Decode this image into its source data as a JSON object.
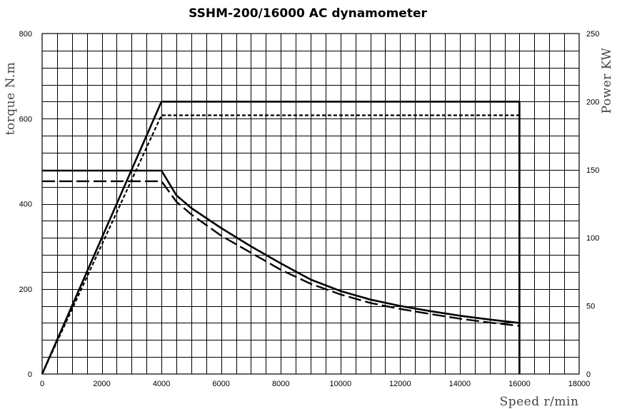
{
  "chart_data": {
    "type": "line",
    "title": "SSHM-200/16000 AC dynamometer",
    "xlabel": "Speed r/min",
    "ylabel_left": "torque N.m",
    "ylabel_right": "Power KW",
    "xlim": [
      0,
      18000
    ],
    "ylim_left": [
      0,
      800
    ],
    "ylim_right": [
      0,
      250
    ],
    "x_ticks": [
      "0",
      "2000",
      "4000",
      "6000",
      "8000",
      "10000",
      "12000",
      "14000",
      "16000",
      "18000"
    ],
    "y_left_ticks": [
      "0",
      "200",
      "400",
      "600",
      "800"
    ],
    "y_right_ticks": [
      "0",
      "50",
      "100",
      "150",
      "200",
      "250"
    ],
    "grid": true,
    "series": [
      {
        "style": "solid",
        "axis": "left",
        "points": [
          [
            0,
            478
          ],
          [
            4000,
            478
          ],
          [
            4500,
            420
          ],
          [
            5000,
            390
          ],
          [
            6000,
            343
          ],
          [
            7000,
            300
          ],
          [
            8000,
            260
          ],
          [
            9000,
            222
          ],
          [
            10000,
            195
          ],
          [
            11000,
            175
          ],
          [
            12000,
            160
          ],
          [
            13000,
            148
          ],
          [
            14000,
            137
          ],
          [
            15000,
            128
          ],
          [
            16000,
            120
          ]
        ]
      },
      {
        "style": "dashed",
        "axis": "left",
        "points": [
          [
            0,
            453
          ],
          [
            4000,
            453
          ],
          [
            4500,
            405
          ],
          [
            5000,
            375
          ],
          [
            6000,
            325
          ],
          [
            7000,
            285
          ],
          [
            8000,
            245
          ],
          [
            9000,
            212
          ],
          [
            10000,
            187
          ],
          [
            11000,
            167
          ],
          [
            12000,
            153
          ],
          [
            13000,
            141
          ],
          [
            14000,
            130
          ],
          [
            15000,
            121
          ],
          [
            16000,
            113
          ]
        ]
      },
      {
        "style": "solid",
        "axis": "right",
        "points": [
          [
            0,
            0
          ],
          [
            4000,
            200
          ],
          [
            16000,
            200
          ],
          [
            16000,
            0
          ]
        ]
      },
      {
        "style": "dotted",
        "axis": "right",
        "points": [
          [
            0,
            0
          ],
          [
            4000,
            190
          ],
          [
            16000,
            190
          ],
          [
            16000,
            0
          ]
        ]
      }
    ]
  }
}
